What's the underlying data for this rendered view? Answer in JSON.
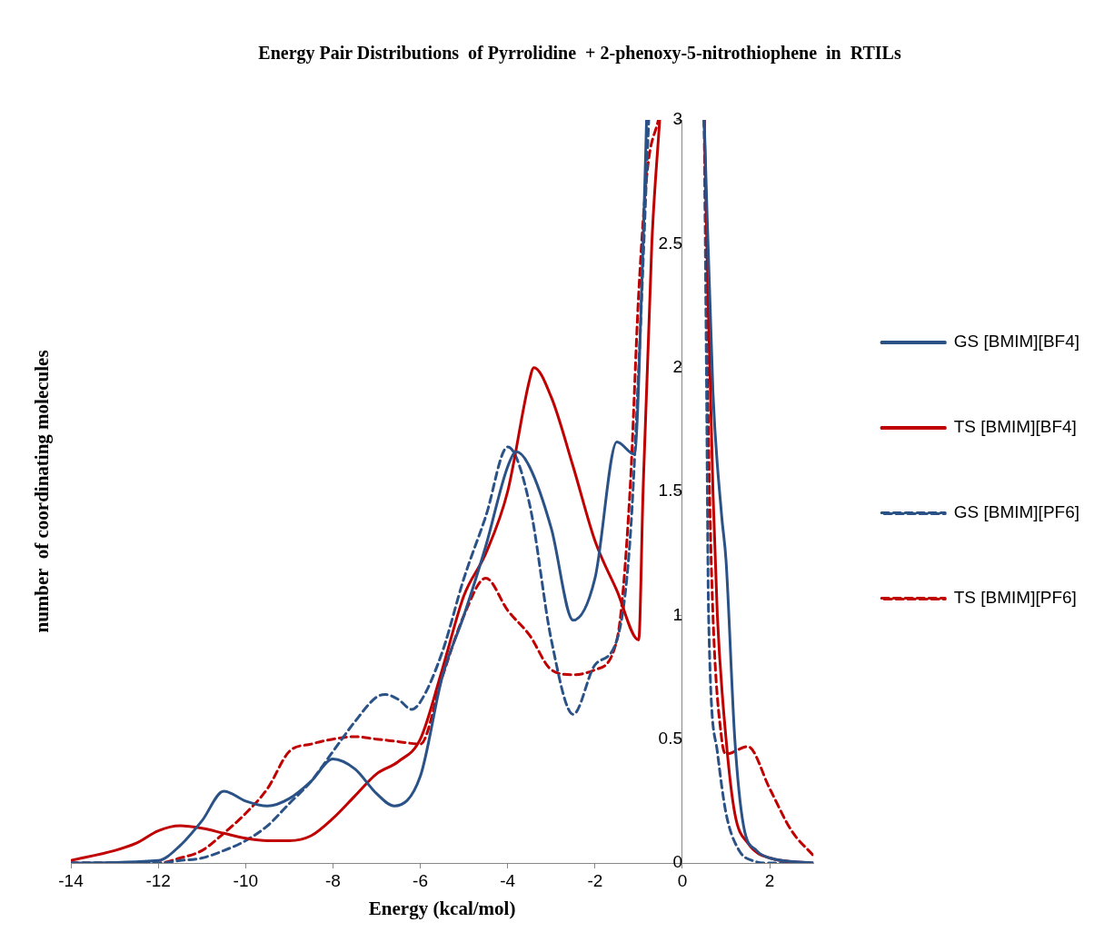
{
  "chart_data": {
    "type": "line",
    "title": "Energy Pair Distributions  of Pyrrolidine  + 2-phenoxy-5-nitrothiophene  in  RTILs",
    "xlabel": "Energy (kcal/mol)",
    "ylabel": "number  of coordinating molecules",
    "xlim": [
      -14,
      3
    ],
    "xticks": [
      -14,
      -12,
      -10,
      -8,
      -6,
      -4,
      -2,
      0,
      2
    ],
    "ylim": [
      0,
      3
    ],
    "yticks": [
      0,
      0.5,
      1,
      1.5,
      2,
      2.5,
      3
    ],
    "grid": false,
    "legend": "right",
    "marker": "none",
    "series": [
      {
        "name": "GS [BMIM][BF4]",
        "color": "#2a5287",
        "line_style": "solid",
        "x": [
          -14,
          -12,
          -11.5,
          -11,
          -10.5,
          -10,
          -9.5,
          -9,
          -8.5,
          -8,
          -7.5,
          -7,
          -6.6,
          -6,
          -5.5,
          -5,
          -4.5,
          -4,
          -3.8,
          -3.5,
          -3,
          -2.5,
          -2,
          -1.5,
          -1.1,
          -0.9,
          -0.82,
          0,
          0.5,
          0.7,
          0.9,
          1,
          1.2,
          1.4,
          1.7,
          2,
          3
        ],
        "values": [
          0,
          0.01,
          0.07,
          0.17,
          0.29,
          0.25,
          0.23,
          0.26,
          0.33,
          0.42,
          0.38,
          0.28,
          0.23,
          0.35,
          0.75,
          1,
          1.28,
          1.6,
          1.66,
          1.6,
          1.35,
          0.98,
          1.15,
          1.7,
          1.65,
          2.5,
          3,
          null,
          3,
          1.9,
          1.4,
          1.22,
          0.5,
          0.15,
          0.05,
          0.02,
          0
        ]
      },
      {
        "name": "TS [BMIM][BF4]",
        "color": "#c00000",
        "line_style": "solid",
        "x": [
          -14,
          -13,
          -12.5,
          -12,
          -11.5,
          -11,
          -10.5,
          -10,
          -9.5,
          -9,
          -8.5,
          -8,
          -7.5,
          -7,
          -6.5,
          -6,
          -5.5,
          -5,
          -4.5,
          -4,
          -3.5,
          -3.4,
          -3,
          -2.5,
          -2,
          -1.5,
          -1,
          -0.9,
          -0.7,
          -0.52,
          0,
          0.5,
          0.6,
          0.7,
          0.8,
          1,
          1.2,
          1.5,
          2,
          3
        ],
        "values": [
          0.01,
          0.05,
          0.08,
          0.13,
          0.15,
          0.14,
          0.12,
          0.1,
          0.09,
          0.09,
          0.11,
          0.18,
          0.27,
          0.36,
          0.41,
          0.5,
          0.78,
          1.08,
          1.25,
          1.5,
          1.95,
          2,
          1.88,
          1.6,
          1.3,
          1.1,
          0.9,
          1.5,
          2.5,
          3,
          null,
          3,
          2.2,
          1.5,
          1,
          0.5,
          0.2,
          0.08,
          0.02,
          0
        ]
      },
      {
        "name": "GS [BMIM][PF6]",
        "color": "#2a5287",
        "line_style": "dashed",
        "x": [
          -14,
          -12,
          -11.5,
          -11,
          -10.5,
          -10,
          -9.5,
          -9,
          -8.5,
          -8,
          -7.5,
          -7,
          -6.8,
          -6.5,
          -6.2,
          -6,
          -5.5,
          -5,
          -4.5,
          -4,
          -3.5,
          -3,
          -2.5,
          -2,
          -1.5,
          -1.2,
          -1,
          -0.77,
          0,
          0.5,
          0.55,
          0.6,
          0.8,
          1,
          1.3,
          1.6,
          2,
          3
        ],
        "values": [
          0,
          0,
          0.01,
          0.02,
          0.05,
          0.09,
          0.15,
          0.24,
          0.33,
          0.45,
          0.57,
          0.67,
          0.68,
          0.66,
          0.62,
          0.65,
          0.85,
          1.15,
          1.4,
          1.68,
          1.45,
          0.9,
          0.6,
          0.8,
          0.9,
          1.3,
          2,
          3,
          null,
          3,
          2,
          1,
          0.45,
          0.2,
          0.05,
          0.01,
          0,
          0
        ]
      },
      {
        "name": "TS [BMIM][PF6]",
        "color": "#c00000",
        "line_style": "dashed",
        "x": [
          -14,
          -12,
          -11.5,
          -11,
          -10.5,
          -10,
          -9.5,
          -9,
          -8.5,
          -8,
          -7.5,
          -7,
          -6.5,
          -6,
          -5.5,
          -5,
          -4.5,
          -4,
          -3.5,
          -3,
          -2.5,
          -2,
          -1.5,
          -1.2,
          -1,
          -0.8,
          -0.55,
          0,
          0.5,
          0.6,
          0.7,
          0.9,
          1,
          1.5,
          2,
          2.5,
          3
        ],
        "values": [
          0,
          0,
          0.02,
          0.05,
          0.12,
          0.2,
          0.3,
          0.45,
          0.48,
          0.5,
          0.51,
          0.5,
          0.49,
          0.48,
          0.75,
          1,
          1.15,
          1.02,
          0.92,
          0.78,
          0.76,
          0.78,
          0.9,
          1.5,
          2.3,
          2.8,
          3,
          null,
          3,
          1.7,
          1,
          0.5,
          0.44,
          0.47,
          0.3,
          0.13,
          0.03
        ]
      }
    ]
  }
}
